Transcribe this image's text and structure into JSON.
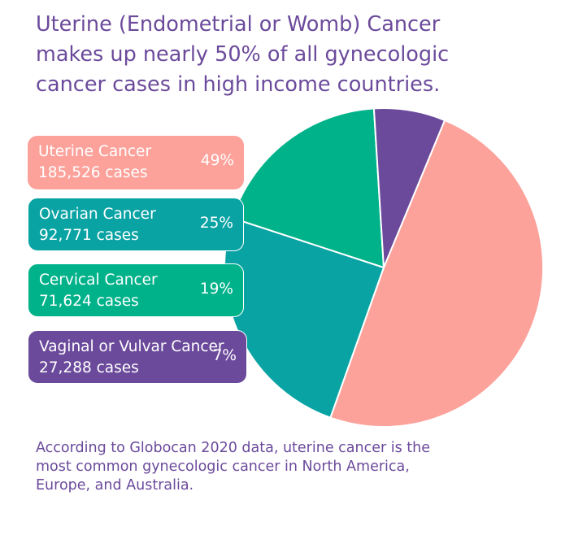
{
  "headline": {
    "line1": "Uterine (Endometrial or Womb) Cancer",
    "line2": "makes up nearly 50% of all gynecologic",
    "line3": "cancer cases in high income countries."
  },
  "footnote": {
    "line1": "According to Globocan 2020 data, uterine cancer is the",
    "line2": "most common gynecologic cancer in North America,",
    "line3": "Europe, and Australia."
  },
  "chart_data": {
    "type": "pie",
    "categories": [
      "Uterine Cancer",
      "Ovarian Cancer",
      "Cervical Cancer",
      "Vaginal or Vulvar Cancer"
    ],
    "values": [
      185526,
      92771,
      71624,
      27288
    ],
    "percentages": [
      "49%",
      "25%",
      "19%",
      "7%"
    ],
    "case_labels": [
      "185,526 cases",
      "92,771 cases",
      "71,624 cases",
      "27,288 cases"
    ],
    "colors": [
      "#fca29b",
      "#0aa3a4",
      "#00b28a",
      "#6b4a9b"
    ]
  }
}
